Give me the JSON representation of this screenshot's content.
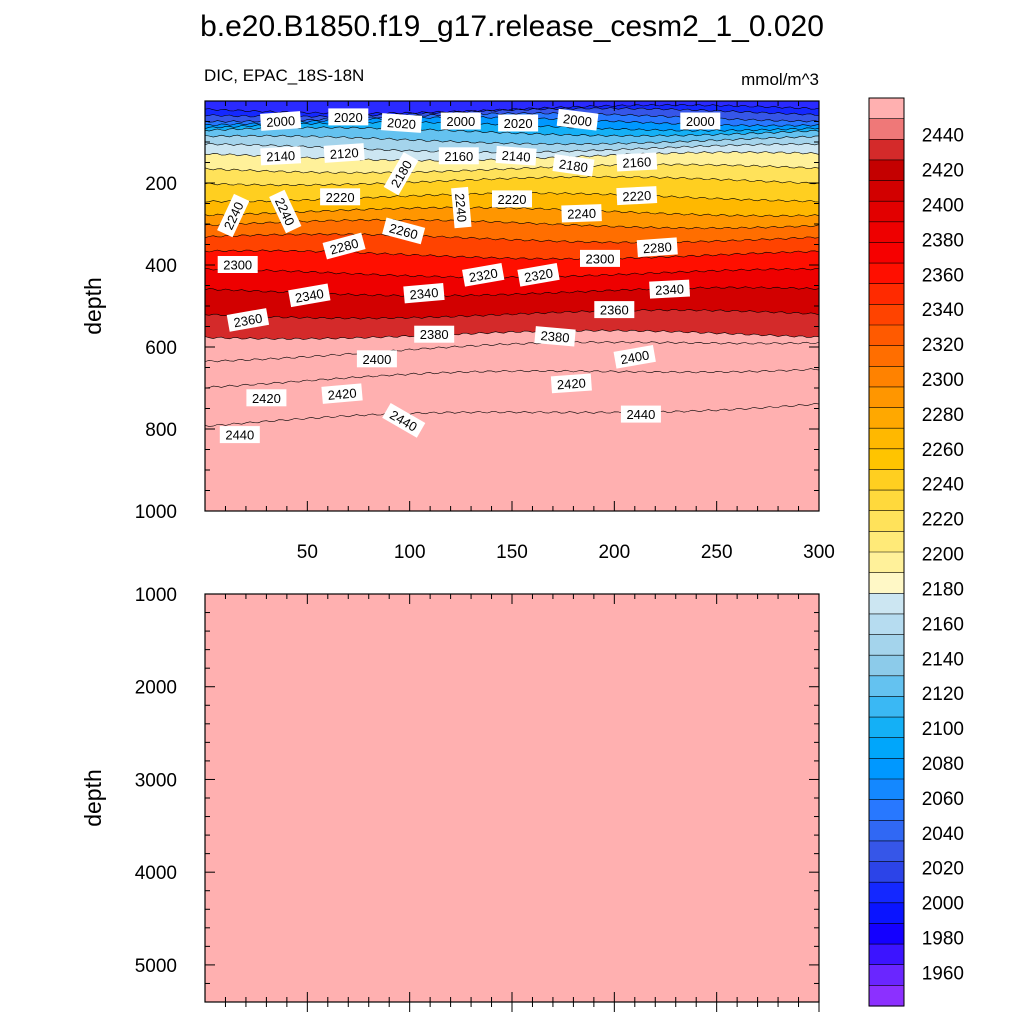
{
  "title": "b.e20.B1850.f19_g17.release_cesm2_1_0.020",
  "chart_data": [
    {
      "type": "heatmap",
      "panel": "upper",
      "left_string": "DIC, EPAC_18S-18N",
      "right_string": "mmol/m^3",
      "xlabel": "",
      "ylabel": "depth",
      "xlim": [
        0,
        300
      ],
      "ylim": [
        1000,
        0
      ],
      "y_reversed": true,
      "xticks": [
        50,
        100,
        150,
        200,
        250,
        300
      ],
      "yticks": [
        200,
        400,
        600,
        800,
        1000
      ],
      "depth_of_contour_level": [
        {
          "level": 2000,
          "depth": 20
        },
        {
          "level": 2020,
          "depth": 28
        },
        {
          "level": 2040,
          "depth": 40
        },
        {
          "level": 2060,
          "depth": 50
        },
        {
          "level": 2080,
          "depth": 62
        },
        {
          "level": 2100,
          "depth": 75
        },
        {
          "level": 2120,
          "depth": 95
        },
        {
          "level": 2140,
          "depth": 115
        },
        {
          "level": 2160,
          "depth": 135
        },
        {
          "level": 2180,
          "depth": 165
        },
        {
          "level": 2200,
          "depth": 195
        },
        {
          "level": 2220,
          "depth": 235
        },
        {
          "level": 2240,
          "depth": 270
        },
        {
          "level": 2260,
          "depth": 300
        },
        {
          "level": 2280,
          "depth": 335
        },
        {
          "level": 2300,
          "depth": 375
        },
        {
          "level": 2320,
          "depth": 420
        },
        {
          "level": 2340,
          "depth": 465
        },
        {
          "level": 2360,
          "depth": 520
        },
        {
          "level": 2380,
          "depth": 570
        },
        {
          "level": 2400,
          "depth": 625
        },
        {
          "level": 2420,
          "depth": 690
        },
        {
          "level": 2440,
          "depth": 790
        }
      ],
      "contour_labels": [
        {
          "text": "2000",
          "x": 37,
          "d": 50,
          "rot": -4
        },
        {
          "text": "2020",
          "x": 70,
          "d": 40,
          "rot": 0
        },
        {
          "text": "2020",
          "x": 96,
          "d": 55,
          "rot": 4
        },
        {
          "text": "2000",
          "x": 125,
          "d": 50,
          "rot": 0
        },
        {
          "text": "2020",
          "x": 153,
          "d": 55,
          "rot": 0
        },
        {
          "text": "2000",
          "x": 182,
          "d": 47,
          "rot": 7
        },
        {
          "text": "2000",
          "x": 242,
          "d": 50,
          "rot": 0
        },
        {
          "text": "2140",
          "x": 37,
          "d": 135,
          "rot": -3
        },
        {
          "text": "2120",
          "x": 68,
          "d": 128,
          "rot": -4
        },
        {
          "text": "2180",
          "x": 96,
          "d": 178,
          "rot": -60
        },
        {
          "text": "2160",
          "x": 124,
          "d": 135,
          "rot": 0
        },
        {
          "text": "2140",
          "x": 152,
          "d": 135,
          "rot": 4
        },
        {
          "text": "2180",
          "x": 180,
          "d": 158,
          "rot": 8
        },
        {
          "text": "2160",
          "x": 211,
          "d": 150,
          "rot": -3
        },
        {
          "text": "2240",
          "x": 14,
          "d": 280,
          "rot": -65
        },
        {
          "text": "2240",
          "x": 39,
          "d": 270,
          "rot": 65
        },
        {
          "text": "2220",
          "x": 66,
          "d": 235,
          "rot": 0
        },
        {
          "text": "2240",
          "x": 125,
          "d": 260,
          "rot": 85
        },
        {
          "text": "2220",
          "x": 150,
          "d": 240,
          "rot": 0
        },
        {
          "text": "2240",
          "x": 184,
          "d": 275,
          "rot": -2
        },
        {
          "text": "2220",
          "x": 211,
          "d": 232,
          "rot": -3
        },
        {
          "text": "2260",
          "x": 97,
          "d": 318,
          "rot": 15
        },
        {
          "text": "2280",
          "x": 68,
          "d": 355,
          "rot": -15
        },
        {
          "text": "2300",
          "x": 16,
          "d": 400,
          "rot": 0
        },
        {
          "text": "2300",
          "x": 193,
          "d": 385,
          "rot": 0
        },
        {
          "text": "2280",
          "x": 221,
          "d": 358,
          "rot": -4
        },
        {
          "text": "2320",
          "x": 136,
          "d": 425,
          "rot": -10
        },
        {
          "text": "2320",
          "x": 163,
          "d": 425,
          "rot": -10
        },
        {
          "text": "2340",
          "x": 51,
          "d": 475,
          "rot": -10
        },
        {
          "text": "2340",
          "x": 107,
          "d": 470,
          "rot": -5
        },
        {
          "text": "2340",
          "x": 227,
          "d": 460,
          "rot": -3
        },
        {
          "text": "2360",
          "x": 21,
          "d": 535,
          "rot": -10
        },
        {
          "text": "2360",
          "x": 200,
          "d": 510,
          "rot": 0
        },
        {
          "text": "2380",
          "x": 112,
          "d": 570,
          "rot": 0
        },
        {
          "text": "2380",
          "x": 171,
          "d": 575,
          "rot": 5
        },
        {
          "text": "2400",
          "x": 84,
          "d": 630,
          "rot": 0
        },
        {
          "text": "2400",
          "x": 210,
          "d": 625,
          "rot": -10
        },
        {
          "text": "2420",
          "x": 30,
          "d": 725,
          "rot": 0
        },
        {
          "text": "2420",
          "x": 67,
          "d": 715,
          "rot": -5
        },
        {
          "text": "2420",
          "x": 179,
          "d": 690,
          "rot": -4
        },
        {
          "text": "2440",
          "x": 17,
          "d": 815,
          "rot": 0
        },
        {
          "text": "2440",
          "x": 97,
          "d": 780,
          "rot": 30
        },
        {
          "text": "2440",
          "x": 213,
          "d": 765,
          "rot": 0
        }
      ]
    },
    {
      "type": "heatmap",
      "panel": "lower",
      "xlabel": "",
      "ylabel": "depth",
      "xlim": [
        0,
        300
      ],
      "ylim": [
        1000,
        5400
      ],
      "y_reversed": true,
      "yticks": [
        1000,
        2000,
        3000,
        4000,
        5000
      ],
      "fill_level": ">2450",
      "fill_color": "#ffb0b0"
    }
  ],
  "colorbar": {
    "labels": [
      "2440",
      "2420",
      "2400",
      "2380",
      "2360",
      "2340",
      "2320",
      "2300",
      "2280",
      "2260",
      "2240",
      "2220",
      "2200",
      "2180",
      "2160",
      "2140",
      "2120",
      "2100",
      "2080",
      "2060",
      "2040",
      "2020",
      "2000",
      "1980",
      "1960"
    ],
    "colors_top_to_bottom": [
      "#ffb0b0",
      "#ef7878",
      "#d42a2a",
      "#c40000",
      "#d20000",
      "#e20000",
      "#ee0000",
      "#f60000",
      "#ff0f00",
      "#ff2a00",
      "#ff4300",
      "#ff5a00",
      "#ff6e00",
      "#ff8200",
      "#ff9600",
      "#ffa800",
      "#ffb800",
      "#ffc400",
      "#ffcf20",
      "#ffd93c",
      "#ffe25a",
      "#ffea78",
      "#fff19a",
      "#fff8c6",
      "#cce6f2",
      "#b6dcf0",
      "#a4d4ec",
      "#8ccbea",
      "#64c2f0",
      "#3ab8f4",
      "#14b0f6",
      "#00a6fb",
      "#0098ff",
      "#1488ff",
      "#2878ff",
      "#3068f4",
      "#3656e8",
      "#2c44e8",
      "#1428ff",
      "#0a14ff",
      "#1400ff",
      "#3c14ff",
      "#6a26ff",
      "#8c30ff"
    ]
  }
}
